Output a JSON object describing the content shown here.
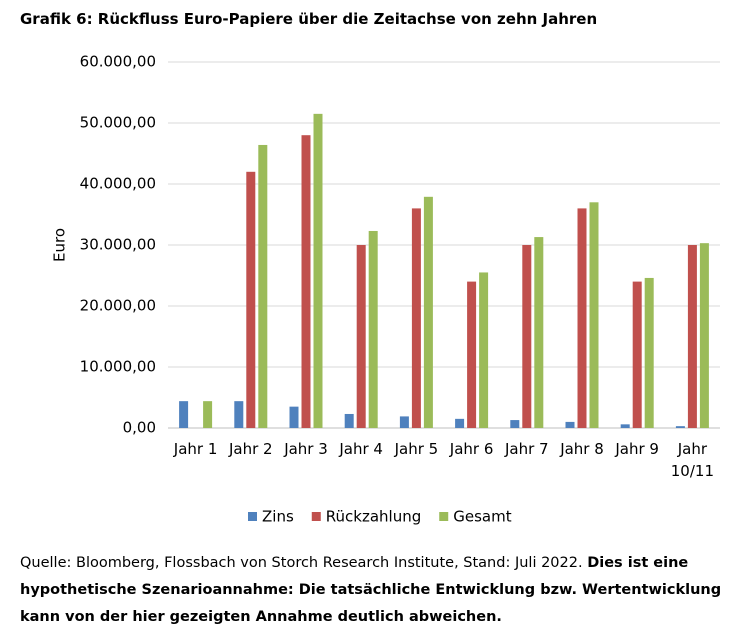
{
  "chart_data": {
    "type": "bar",
    "title": "Grafik 6: Rückfluss Euro-Papiere über die Zeitachse von zehn Jahren",
    "ylabel": "Euro",
    "categories": [
      "Jahr 1",
      "Jahr 2",
      "Jahr 3",
      "Jahr 4",
      "Jahr 5",
      "Jahr 6",
      "Jahr 7",
      "Jahr 8",
      "Jahr 9",
      "Jahr 10/11"
    ],
    "series": [
      {
        "name": "Zins",
        "color": "#4f81bd",
        "values": [
          4400,
          4400,
          3500,
          2300,
          1900,
          1500,
          1300,
          1000,
          600,
          300
        ]
      },
      {
        "name": "Rückzahlung",
        "color": "#c0504d",
        "values": [
          0,
          42000,
          48000,
          30000,
          36000,
          24000,
          30000,
          36000,
          24000,
          30000
        ]
      },
      {
        "name": "Gesamt",
        "color": "#9bbb59",
        "values": [
          4400,
          46400,
          51500,
          32300,
          37900,
          25500,
          31300,
          37000,
          24600,
          30300
        ]
      }
    ],
    "ylim": [
      0,
      60000
    ],
    "yticks": [
      {
        "value": 0,
        "label": "0,00"
      },
      {
        "value": 10000,
        "label": "10.000,00"
      },
      {
        "value": 20000,
        "label": "20.000,00"
      },
      {
        "value": 30000,
        "label": "30.000,00"
      },
      {
        "value": 40000,
        "label": "40.000,00"
      },
      {
        "value": 50000,
        "label": "50.000,00"
      },
      {
        "value": 60000,
        "label": "60.000,00"
      }
    ],
    "grid": true,
    "legend": "bottom",
    "source": "Quelle: Bloomberg, Flossbach von Storch Research Institute, Stand: Juli 2022.",
    "note": "Dies ist eine hypothetische Szenarioannahme: Die tatsächliche Entwicklung bzw. Wertentwicklung kann von der hier gezeigten Annahme deutlich abweichen."
  }
}
